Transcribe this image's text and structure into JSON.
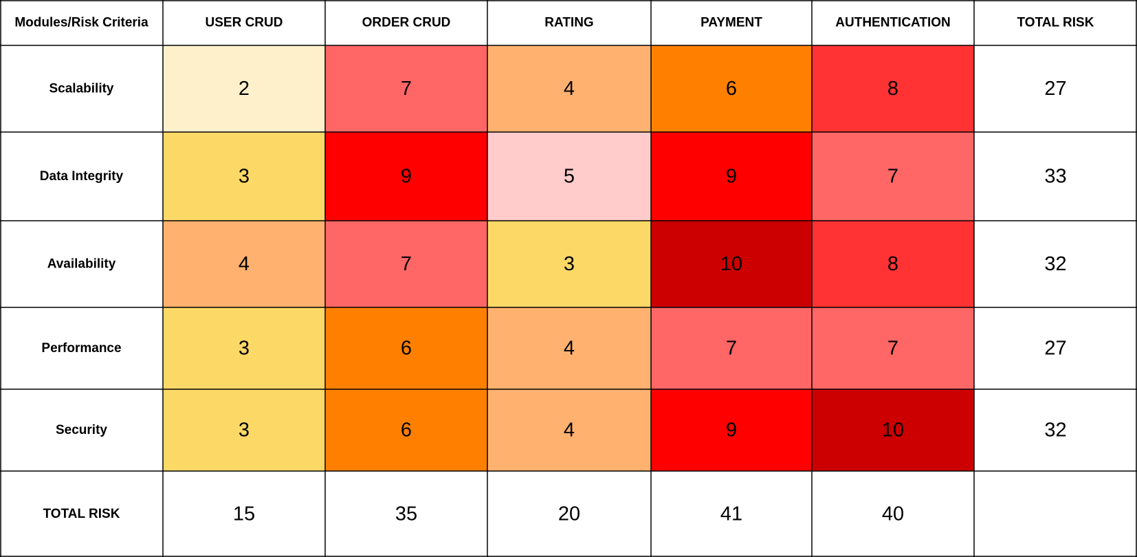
{
  "chart_data": {
    "type": "heatmap",
    "corner_label": "Modules/Risk Criteria",
    "columns": [
      "USER CRUD",
      "ORDER CRUD",
      "RATING",
      "PAYMENT",
      "AUTHENTICATION"
    ],
    "rows": [
      "Scalability",
      "Data Integrity",
      "Availability",
      "Performance",
      "Security"
    ],
    "values": [
      [
        2,
        7,
        4,
        6,
        8
      ],
      [
        3,
        9,
        5,
        9,
        7
      ],
      [
        4,
        7,
        3,
        10,
        8
      ],
      [
        3,
        6,
        4,
        7,
        7
      ],
      [
        3,
        6,
        4,
        9,
        10
      ]
    ],
    "total_label": "TOTAL RISK",
    "row_totals": [
      27,
      33,
      32,
      27,
      32
    ],
    "column_totals": [
      15,
      35,
      20,
      41,
      40
    ],
    "color_scale": {
      "2": "#fff0cc",
      "3": "#fcd966",
      "4": "#ffb26f",
      "5": "#ffcccb",
      "6": "#ff8000",
      "7": "#ff6666",
      "8": "#ff3333",
      "9": "#ff0000",
      "10": "#cc0000"
    }
  }
}
